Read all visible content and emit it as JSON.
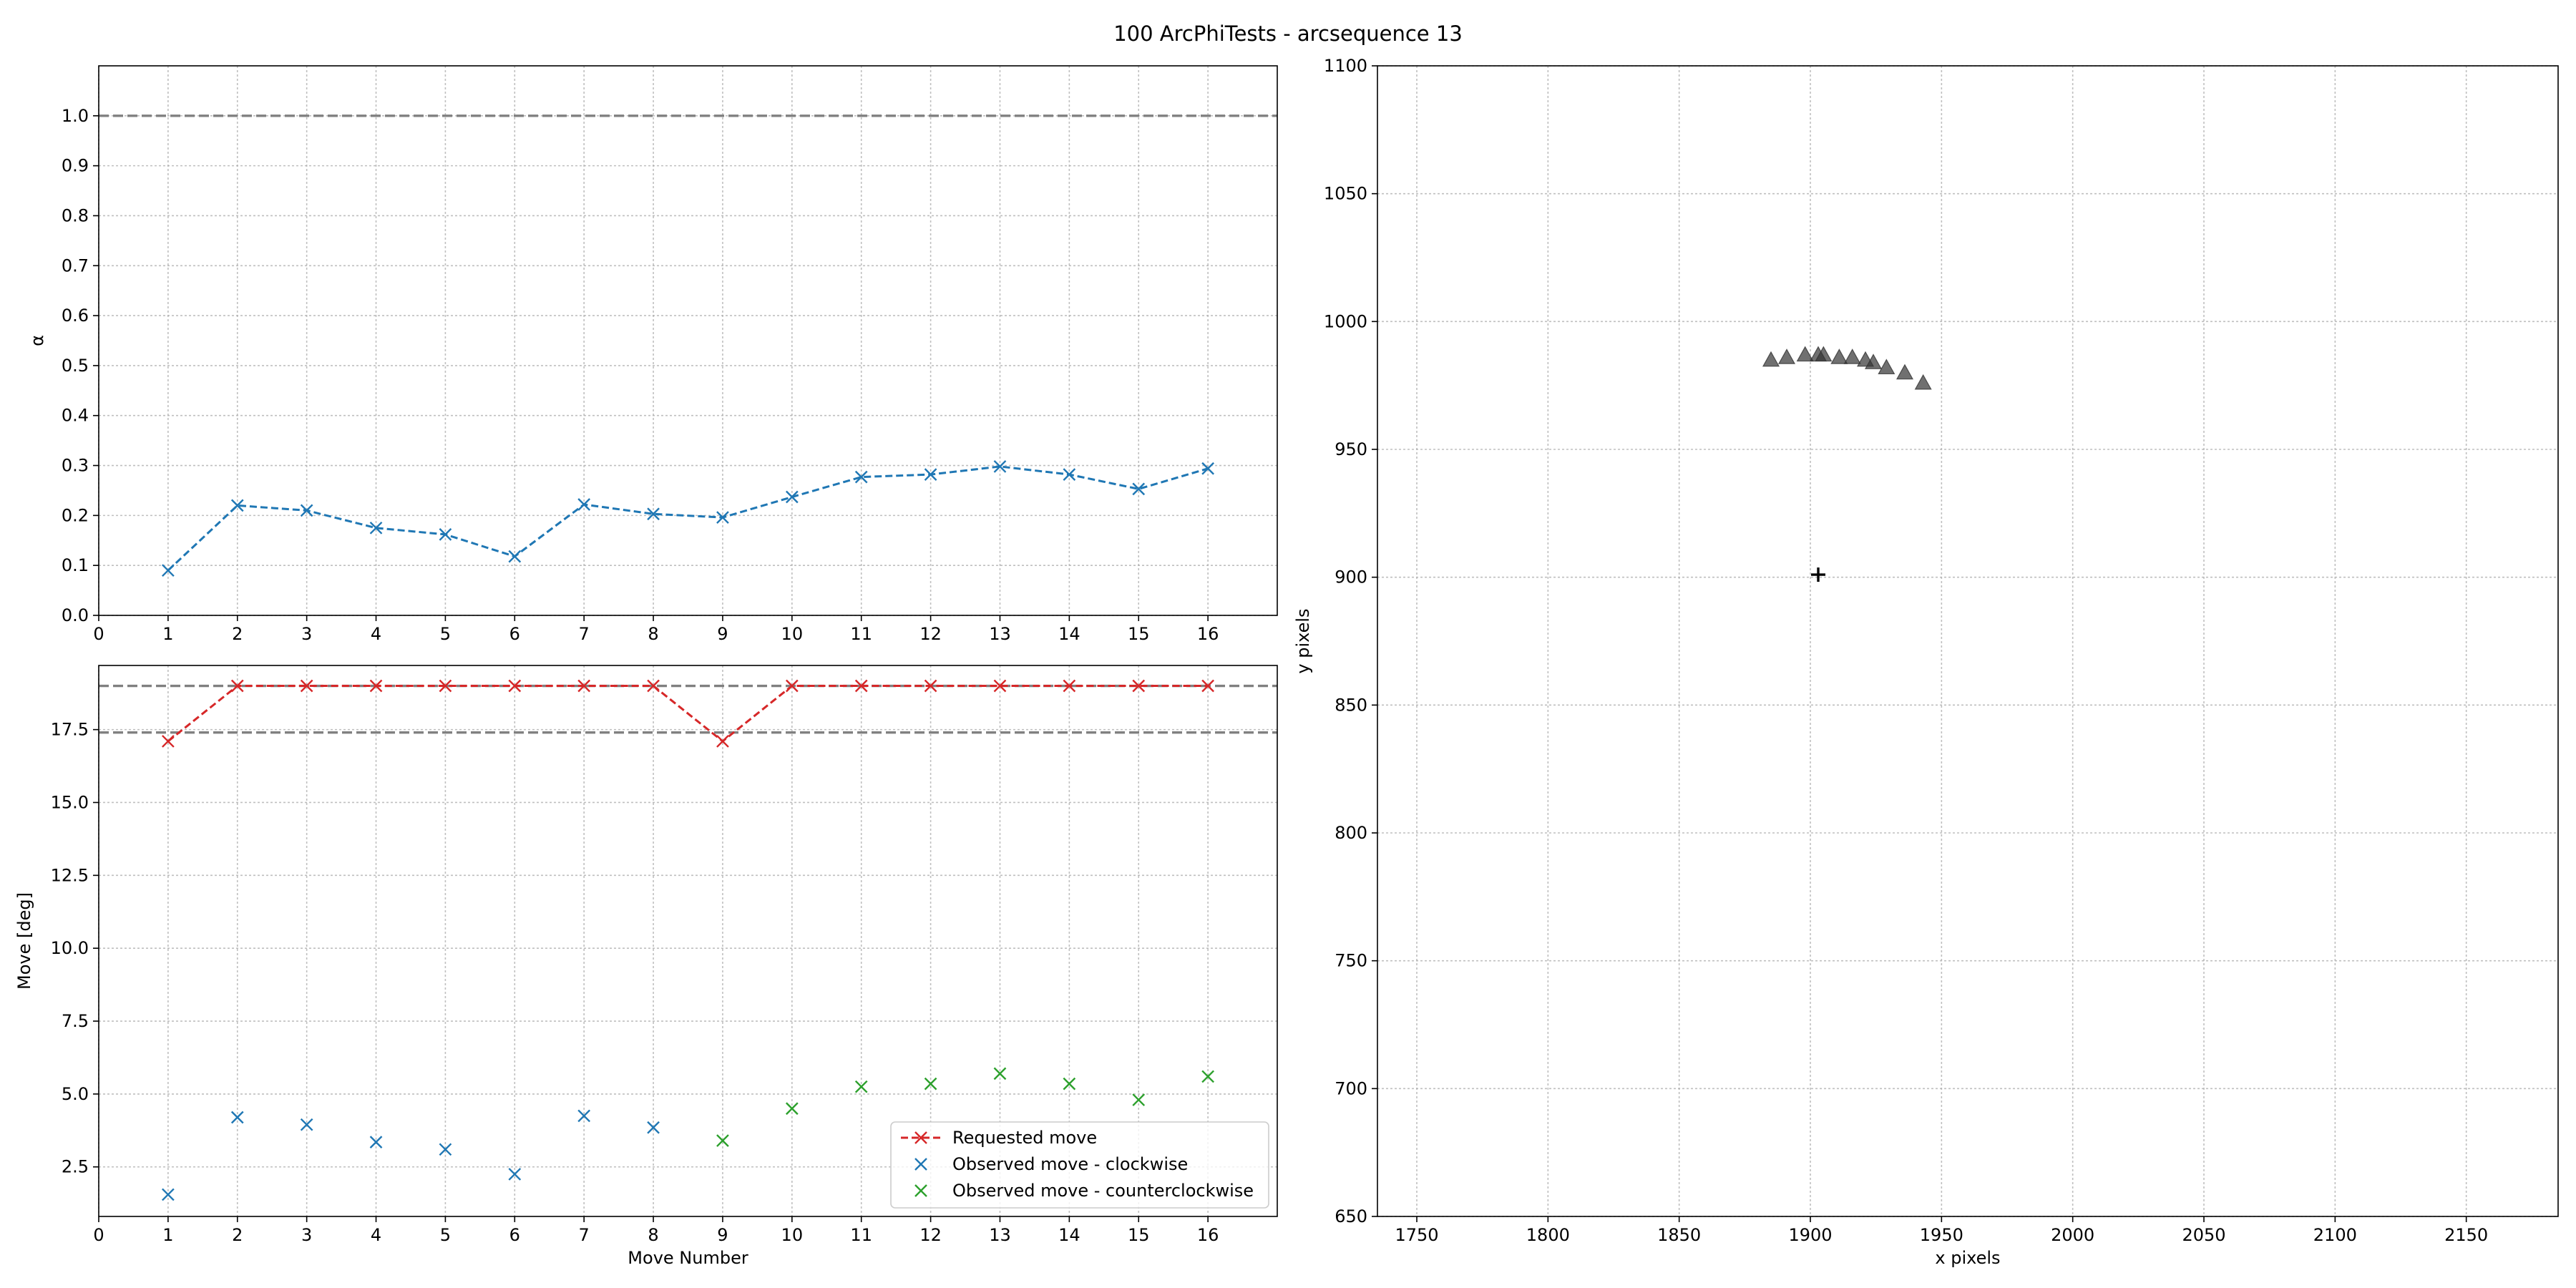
{
  "suptitle": "100 ArcPhiTests - arcsequence 13",
  "colors": {
    "alpha_line": "#1f77b4",
    "requested": "#d62728",
    "clockwise": "#1f77b4",
    "counterclockwise": "#2ca02c",
    "reference": "#808080",
    "positions": "#333333",
    "center": "#000000"
  },
  "chart_data": [
    {
      "type": "line",
      "name": "alpha",
      "ylabel": "α",
      "xlabel": "",
      "xlim": [
        0,
        17
      ],
      "ylim": [
        0,
        1.1
      ],
      "xticks": [
        0,
        1,
        2,
        3,
        4,
        5,
        6,
        7,
        8,
        9,
        10,
        11,
        12,
        13,
        14,
        15,
        16
      ],
      "xticklabels": [
        "0",
        "1",
        "2",
        "3",
        "4",
        "5",
        "6",
        "7",
        "8",
        "9",
        "10",
        "11",
        "12",
        "13",
        "14",
        "15",
        "16"
      ],
      "yticks": [
        0,
        0.1,
        0.2,
        0.3,
        0.4,
        0.5,
        0.6,
        0.7,
        0.8,
        0.9,
        1.0
      ],
      "yticklabels": [
        "0.0",
        "0.1",
        "0.2",
        "0.3",
        "0.4",
        "0.5",
        "0.6",
        "0.7",
        "0.8",
        "0.9",
        "1.0"
      ],
      "grid": true,
      "reference_lines": [
        1.0
      ],
      "series": [
        {
          "x": [
            1,
            2,
            3,
            4,
            5,
            6,
            7,
            8,
            9,
            10,
            11,
            12,
            13,
            14,
            15,
            16
          ],
          "values": [
            0.09,
            0.22,
            0.21,
            0.175,
            0.162,
            0.118,
            0.222,
            0.203,
            0.196,
            0.237,
            0.277,
            0.282,
            0.298,
            0.282,
            0.253,
            0.294
          ]
        }
      ]
    },
    {
      "type": "line",
      "name": "moves",
      "ylabel": "Move [deg]",
      "xlabel": "Move Number",
      "xlim": [
        0,
        17
      ],
      "ylim": [
        0.8,
        19.7
      ],
      "xticks": [
        0,
        1,
        2,
        3,
        4,
        5,
        6,
        7,
        8,
        9,
        10,
        11,
        12,
        13,
        14,
        15,
        16
      ],
      "xticklabels": [
        "0",
        "1",
        "2",
        "3",
        "4",
        "5",
        "6",
        "7",
        "8",
        "9",
        "10",
        "11",
        "12",
        "13",
        "14",
        "15",
        "16"
      ],
      "yticks": [
        2.5,
        5.0,
        7.5,
        10.0,
        12.5,
        15.0,
        17.5
      ],
      "yticklabels": [
        "2.5",
        "5.0",
        "7.5",
        "10.0",
        "12.5",
        "15.0",
        "17.5"
      ],
      "grid": true,
      "reference_lines": [
        19.0,
        17.4
      ],
      "legend_position": "lower-right",
      "series": [
        {
          "name": "Requested move",
          "x": [
            1,
            2,
            3,
            4,
            5,
            6,
            7,
            8,
            9,
            10,
            11,
            12,
            13,
            14,
            15,
            16
          ],
          "values": [
            17.1,
            19.0,
            19.0,
            19.0,
            19.0,
            19.0,
            19.0,
            19.0,
            17.1,
            19.0,
            19.0,
            19.0,
            19.0,
            19.0,
            19.0,
            19.0
          ]
        },
        {
          "name": "Observed move - clockwise",
          "x": [
            1,
            2,
            3,
            4,
            5,
            6,
            7,
            8
          ],
          "values": [
            1.55,
            4.2,
            3.95,
            3.35,
            3.1,
            2.25,
            4.25,
            3.85
          ]
        },
        {
          "name": "Observed move - counterclockwise",
          "x": [
            9,
            10,
            11,
            12,
            13,
            14,
            15,
            16
          ],
          "values": [
            3.4,
            4.5,
            5.25,
            5.35,
            5.7,
            5.35,
            4.8,
            5.6
          ]
        }
      ]
    },
    {
      "type": "scatter",
      "name": "positions",
      "xlabel": "x pixels",
      "ylabel": "y pixels",
      "xlim": [
        1735,
        2185
      ],
      "ylim": [
        650,
        1100
      ],
      "xticks": [
        1750,
        1800,
        1850,
        1900,
        1950,
        2000,
        2050,
        2100,
        2150
      ],
      "xticklabels": [
        "1750",
        "1800",
        "1850",
        "1900",
        "1950",
        "2000",
        "2050",
        "2100",
        "2150"
      ],
      "yticks": [
        650,
        700,
        750,
        800,
        850,
        900,
        950,
        1000,
        1050,
        1100
      ],
      "yticklabels": [
        "650",
        "700",
        "750",
        "800",
        "850",
        "900",
        "950",
        "1000",
        "1050",
        "1100"
      ],
      "grid": true,
      "points": {
        "x": [
          1885,
          1891,
          1898,
          1903,
          1905,
          1911,
          1916,
          1921,
          1924,
          1929,
          1936,
          1943
        ],
        "y": [
          985,
          986,
          987,
          987,
          987,
          986,
          986,
          985,
          984,
          982,
          980,
          976
        ]
      },
      "center": {
        "x": 1903,
        "y": 901
      }
    }
  ]
}
